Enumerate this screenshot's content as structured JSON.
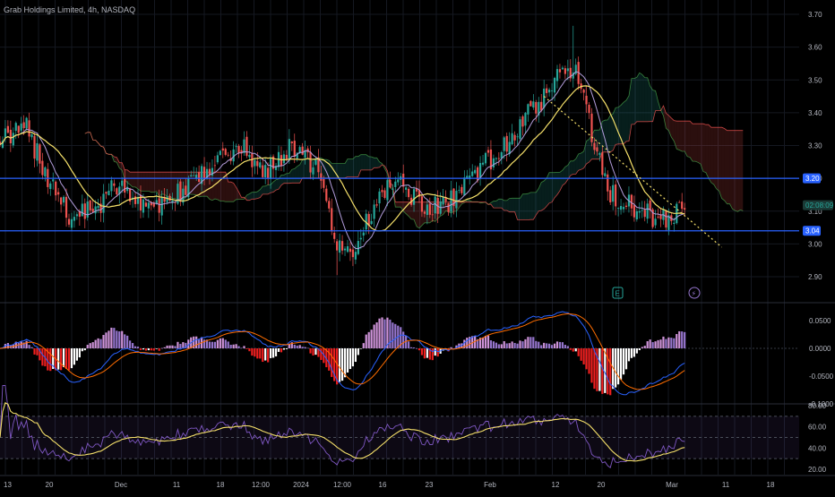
{
  "header": {
    "title": "Grab Holdings Limited, 4h, NASDAQ"
  },
  "price_axis": {
    "ticks": [
      "3.70",
      "3.60",
      "3.50",
      "3.40",
      "3.30",
      "3.20",
      "3.10",
      "3.00",
      "2.90"
    ]
  },
  "macd_axis": {
    "ticks": [
      "0.0500",
      "0.0000",
      "-0.0500",
      "-0.1000"
    ]
  },
  "rsi_axis": {
    "ticks": [
      "80.00",
      "60.00",
      "40.00",
      "20.00"
    ]
  },
  "time_axis": {
    "ticks": [
      "13",
      "20",
      "Dec",
      "11",
      "18",
      "12:00",
      "2024",
      "12:00",
      "16",
      "23",
      "Feb",
      "12",
      "20",
      "Mar",
      "11",
      "18"
    ]
  },
  "levels": {
    "upper": "3.20",
    "lower": "3.04",
    "current": "3.11",
    "countdown": "02:08:09"
  },
  "markers": {
    "earnings": "E",
    "event": "⚡"
  },
  "colors": {
    "up": "#26a69a",
    "down": "#ef5350",
    "level": "#2962ff",
    "ma_fast": "#b39ddb",
    "ma_slow": "#f5e06a",
    "rsi": "#7e57c2",
    "rsi_ma": "#f5e06a",
    "grid": "#151821"
  },
  "chart_data": [
    {
      "type": "candlestick",
      "title": "Grab Holdings Limited, 4h, NASDAQ",
      "ylim": [
        2.85,
        3.72
      ],
      "anchors_close": [
        {
          "x": 0,
          "y": 3.32
        },
        {
          "x": 10,
          "y": 3.35
        },
        {
          "x": 18,
          "y": 3.2
        },
        {
          "x": 26,
          "y": 3.08
        },
        {
          "x": 35,
          "y": 3.1
        },
        {
          "x": 45,
          "y": 3.19
        },
        {
          "x": 55,
          "y": 3.1
        },
        {
          "x": 62,
          "y": 3.12
        },
        {
          "x": 72,
          "y": 3.18
        },
        {
          "x": 80,
          "y": 3.25
        },
        {
          "x": 90,
          "y": 3.3
        },
        {
          "x": 100,
          "y": 3.22
        },
        {
          "x": 110,
          "y": 3.3
        },
        {
          "x": 120,
          "y": 3.22
        },
        {
          "x": 127,
          "y": 2.98
        },
        {
          "x": 132,
          "y": 2.96
        },
        {
          "x": 140,
          "y": 3.1
        },
        {
          "x": 150,
          "y": 3.2
        },
        {
          "x": 160,
          "y": 3.1
        },
        {
          "x": 170,
          "y": 3.13
        },
        {
          "x": 180,
          "y": 3.22
        },
        {
          "x": 190,
          "y": 3.3
        },
        {
          "x": 198,
          "y": 3.4
        },
        {
          "x": 205,
          "y": 3.44
        },
        {
          "x": 212,
          "y": 3.55
        },
        {
          "x": 218,
          "y": 3.52
        },
        {
          "x": 224,
          "y": 3.3
        },
        {
          "x": 230,
          "y": 3.16
        },
        {
          "x": 240,
          "y": 3.1
        },
        {
          "x": 250,
          "y": 3.07
        },
        {
          "x": 258,
          "y": 3.1
        }
      ],
      "levels": [
        3.2,
        3.04
      ],
      "trendline": {
        "from": {
          "x": 205,
          "y": 3.45
        },
        "to": {
          "x": 272,
          "y": 2.99
        }
      }
    },
    {
      "type": "macd",
      "ylim": [
        -0.105,
        0.07
      ],
      "zero_line": 0.0
    },
    {
      "type": "rsi",
      "ylim": [
        15,
        85
      ],
      "bands": [
        70,
        50,
        30
      ]
    }
  ]
}
